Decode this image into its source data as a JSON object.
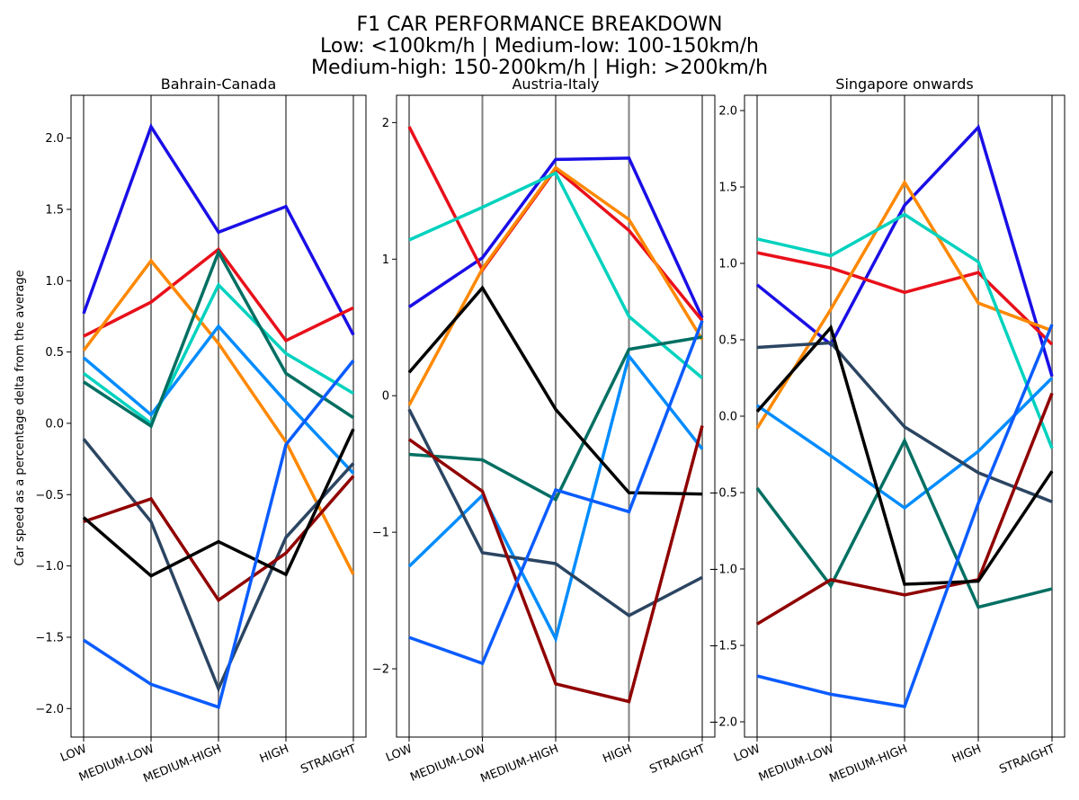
{
  "figure": {
    "title_lines": [
      "F1 CAR PERFORMANCE BREAKDOWN",
      "Low: <100km/h | Medium-low: 100-150km/h",
      "Medium-high: 150-200km/h | High: >200km/h"
    ],
    "ylabel": "Car speed as a percentage delta from the average"
  },
  "chart_data": [
    {
      "type": "line",
      "title": "Bahrain-Canada",
      "categories": [
        "LOW",
        "MEDIUM-LOW",
        "MEDIUM-HIGH",
        "HIGH",
        "STRAIGHT"
      ],
      "ylim": [
        -2.2,
        2.3
      ],
      "yticks": [
        -2.0,
        -1.5,
        -1.0,
        -0.5,
        0.0,
        0.5,
        1.0,
        1.5,
        2.0
      ],
      "ytick_labels": [
        "−2.0",
        "−1.5",
        "−1.0",
        "−0.5",
        "0.0",
        "0.5",
        "1.0",
        "1.5",
        "2.0"
      ],
      "series": [
        {
          "color": "#1a0fe6",
          "values": [
            0.77,
            2.08,
            1.34,
            1.52,
            0.62
          ]
        },
        {
          "color": "#e8101a",
          "values": [
            0.61,
            0.85,
            1.22,
            0.58,
            0.81
          ]
        },
        {
          "color": "#ff8800",
          "values": [
            0.51,
            1.14,
            0.56,
            -0.13,
            -1.06
          ]
        },
        {
          "color": "#00d2be",
          "values": [
            0.35,
            0.0,
            0.97,
            0.49,
            0.21
          ]
        },
        {
          "color": "#008cff",
          "values": [
            0.46,
            0.06,
            0.68,
            0.15,
            -0.35
          ]
        },
        {
          "color": "#006f62",
          "values": [
            0.29,
            -0.02,
            1.2,
            0.35,
            0.04
          ]
        },
        {
          "color": "#2b4562",
          "values": [
            -0.11,
            -0.69,
            -1.86,
            -0.8,
            -0.28
          ]
        },
        {
          "color": "#900000",
          "values": [
            -0.69,
            -0.53,
            -1.24,
            -0.91,
            -0.37
          ]
        },
        {
          "color": "#000000",
          "values": [
            -0.66,
            -1.07,
            -0.83,
            -1.06,
            -0.04
          ]
        },
        {
          "color": "#0a5cff",
          "values": [
            -1.52,
            -1.83,
            -1.99,
            -0.15,
            0.44
          ]
        }
      ]
    },
    {
      "type": "line",
      "title": "Austria-Italy",
      "categories": [
        "LOW",
        "MEDIUM-LOW",
        "MEDIUM-HIGH",
        "HIGH",
        "STRAIGHT"
      ],
      "ylim": [
        -2.5,
        2.2
      ],
      "yticks": [
        -2,
        -1,
        0,
        1,
        2
      ],
      "ytick_labels": [
        "−2",
        "−1",
        "0",
        "1",
        "2"
      ],
      "series": [
        {
          "color": "#1a0fe6",
          "values": [
            0.65,
            1.01,
            1.73,
            1.74,
            0.57
          ]
        },
        {
          "color": "#e8101a",
          "values": [
            1.97,
            0.92,
            1.66,
            1.21,
            0.55
          ]
        },
        {
          "color": "#ff8800",
          "values": [
            -0.07,
            0.93,
            1.67,
            1.29,
            0.41
          ]
        },
        {
          "color": "#00d2be",
          "values": [
            1.14,
            1.38,
            1.63,
            0.58,
            0.13
          ]
        },
        {
          "color": "#008cff",
          "values": [
            -1.25,
            -0.73,
            -1.78,
            0.29,
            -0.39
          ]
        },
        {
          "color": "#006f62",
          "values": [
            -0.43,
            -0.47,
            -0.76,
            0.34,
            0.43
          ]
        },
        {
          "color": "#2b4562",
          "values": [
            -0.1,
            -1.15,
            -1.23,
            -1.61,
            -1.33
          ]
        },
        {
          "color": "#900000",
          "values": [
            -0.32,
            -0.7,
            -2.11,
            -2.24,
            -0.22
          ]
        },
        {
          "color": "#000000",
          "values": [
            0.17,
            0.79,
            -0.1,
            -0.71,
            -0.72
          ]
        },
        {
          "color": "#0a5cff",
          "values": [
            -1.77,
            -1.96,
            -0.69,
            -0.85,
            0.55
          ]
        }
      ]
    },
    {
      "type": "line",
      "title": "Singapore onwards",
      "categories": [
        "LOW",
        "MEDIUM-LOW",
        "MEDIUM-HIGH",
        "HIGH",
        "STRAIGHT"
      ],
      "ylim": [
        -2.1,
        2.1
      ],
      "yticks": [
        -2.0,
        -1.5,
        -1.0,
        -0.5,
        0.0,
        0.5,
        1.0,
        1.5,
        2.0
      ],
      "ytick_labels": [
        "−2.0",
        "−1.5",
        "−1.0",
        "−0.5",
        "0.0",
        "0.5",
        "1.0",
        "1.5",
        "2.0"
      ],
      "series": [
        {
          "color": "#1a0fe6",
          "values": [
            0.86,
            0.47,
            1.38,
            1.89,
            0.26
          ]
        },
        {
          "color": "#e8101a",
          "values": [
            1.07,
            0.97,
            0.81,
            0.94,
            0.47
          ]
        },
        {
          "color": "#ff8800",
          "values": [
            -0.08,
            0.7,
            1.53,
            0.74,
            0.56
          ]
        },
        {
          "color": "#00d2be",
          "values": [
            1.16,
            1.05,
            1.32,
            1.01,
            -0.21
          ]
        },
        {
          "color": "#008cff",
          "values": [
            0.07,
            -0.26,
            -0.6,
            -0.23,
            0.25
          ]
        },
        {
          "color": "#006f62",
          "values": [
            -0.47,
            -1.11,
            -0.16,
            -1.25,
            -1.13
          ]
        },
        {
          "color": "#2b4562",
          "values": [
            0.45,
            0.48,
            -0.07,
            -0.37,
            -0.56
          ]
        },
        {
          "color": "#900000",
          "values": [
            -1.36,
            -1.07,
            -1.17,
            -1.07,
            0.15
          ]
        },
        {
          "color": "#000000",
          "values": [
            0.03,
            0.58,
            -1.1,
            -1.08,
            -0.36
          ]
        },
        {
          "color": "#0a5cff",
          "values": [
            -1.7,
            -1.82,
            -1.9,
            -0.57,
            0.6
          ]
        }
      ]
    }
  ]
}
